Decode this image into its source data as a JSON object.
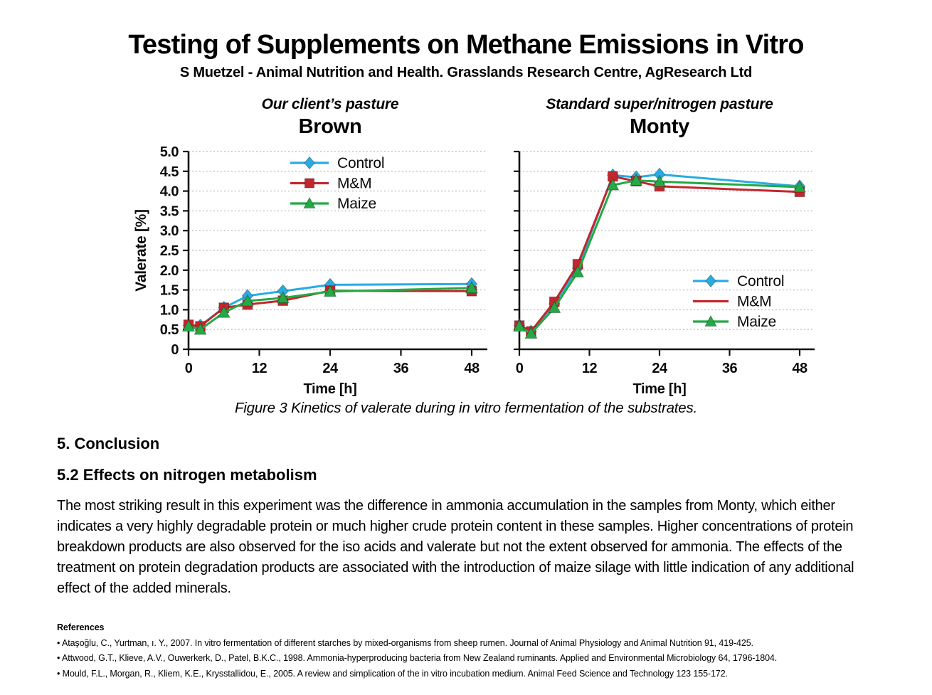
{
  "page": {
    "title": "Testing of Supplements on Methane Emissions in Vitro",
    "subtitle": "S Muetzel - Animal Nutrition and Health. Grasslands Research Centre, AgResearch Ltd",
    "caption": "Figure 3 Kinetics of valerate during in vitro fermentation of the substrates."
  },
  "conclusion": {
    "heading": "5. Conclusion",
    "subheading": "5.2 Effects on nitrogen metabolism",
    "body": "The most striking result in this experiment was the difference in ammonia accumulation in the samples from Monty, which either indicates a very highly degradable protein or much higher crude protein content in these samples. Higher concentrations of protein breakdown products are also observed for the iso acids and valerate but not the extent observed for ammonia. The effects of the treatment on protein degradation products are associated with the introduction of maize silage with little indication of any additional effect of the added minerals."
  },
  "references": {
    "heading": "References",
    "items": [
      "• Ataşoğlu, C., Yurtman, ı. Y., 2007. In vitro fermentation of different starches by mixed-organisms from sheep rumen. Journal of Animal Physiology and Animal Nutrition 91, 419-425.",
      "• Attwood, G.T., Klieve, A.V., Ouwerkerk, D., Patel, B.K.C., 1998. Ammonia-hyperproducing bacteria from New Zealand ruminants. Applied and Environmental Microbiology 64, 1796-1804.",
      "• Mould, F.L., Morgan, R., Kliem, K.E., Krysstallidou, E., 2005. A review and simplication of the in vitro incubation medium. Animal Feed Science and Technology 123 155-172."
    ]
  },
  "chart_data": [
    {
      "type": "line",
      "pasture_label": "Our client’s pasture",
      "title": "Brown",
      "xlabel": "Time [h]",
      "ylabel": "Valerate [%]",
      "xlim": [
        0,
        48
      ],
      "ylim": [
        0,
        5
      ],
      "xticks": [
        0,
        12,
        24,
        36,
        48
      ],
      "ytick_step": 0.5,
      "grid": "horizontal-dotted",
      "legend_position": "inside-top-center",
      "show_ytick_labels": true,
      "x": [
        0,
        2,
        6,
        10,
        16,
        24,
        48
      ],
      "series": [
        {
          "name": "Control",
          "color": "#29ABE2",
          "marker": "diamond",
          "legend_marker": true,
          "values": [
            0.6,
            0.6,
            1.05,
            1.35,
            1.47,
            1.63,
            1.65
          ]
        },
        {
          "name": "M&M",
          "color": "#C1272D",
          "marker": "square",
          "legend_marker": true,
          "values": [
            0.62,
            0.58,
            1.05,
            1.13,
            1.23,
            1.48,
            1.47
          ]
        },
        {
          "name": "Maize",
          "color": "#23A945",
          "marker": "triangle",
          "legend_marker": true,
          "values": [
            0.58,
            0.5,
            0.93,
            1.22,
            1.3,
            1.46,
            1.55
          ]
        }
      ]
    },
    {
      "type": "line",
      "pasture_label": "Standard super/nitrogen pasture",
      "title": "Monty",
      "xlabel": "Time [h]",
      "ylabel": "",
      "xlim": [
        0,
        48
      ],
      "ylim": [
        0,
        5
      ],
      "xticks": [
        0,
        12,
        24,
        36,
        48
      ],
      "ytick_step": 0.5,
      "grid": "horizontal-dotted",
      "legend_position": "inside-middle-right",
      "show_ytick_labels": false,
      "x": [
        0,
        2,
        6,
        10,
        16,
        20,
        24,
        48
      ],
      "series": [
        {
          "name": "Control",
          "color": "#29ABE2",
          "marker": "diamond",
          "legend_marker": true,
          "values": [
            0.6,
            0.45,
            1.15,
            2.05,
            4.4,
            4.35,
            4.42,
            4.12
          ]
        },
        {
          "name": "M&M",
          "color": "#C1272D",
          "marker": "square",
          "legend_marker": false,
          "values": [
            0.6,
            0.45,
            1.2,
            2.15,
            4.37,
            4.25,
            4.12,
            3.98
          ]
        },
        {
          "name": "Maize",
          "color": "#23A945",
          "marker": "triangle",
          "legend_marker": true,
          "values": [
            0.58,
            0.4,
            1.05,
            1.95,
            4.15,
            4.27,
            4.24,
            4.1
          ]
        }
      ]
    }
  ]
}
